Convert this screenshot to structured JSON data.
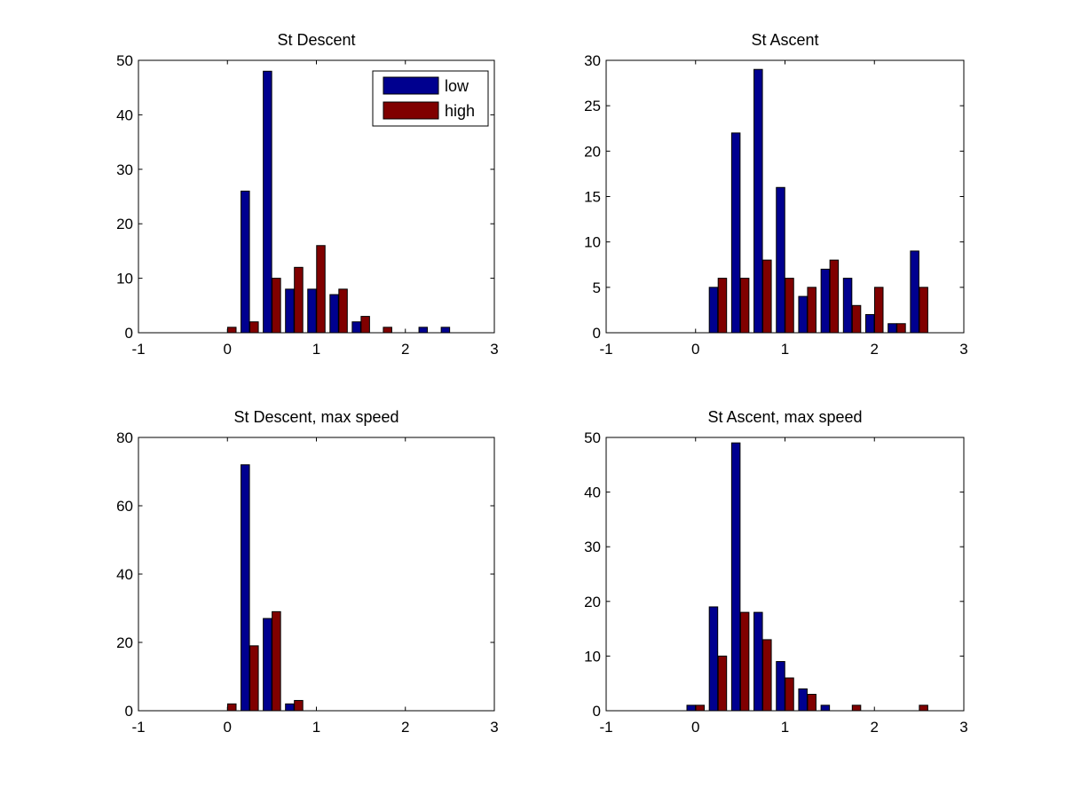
{
  "figure": {
    "background": "#ffffff",
    "series_colors": {
      "low": "#00008f",
      "high": "#800000"
    }
  },
  "chart_data": [
    {
      "type": "bar",
      "title": "St Descent",
      "xlabel": "",
      "ylabel": "",
      "xlim": [
        -1,
        3
      ],
      "ylim": [
        0,
        50
      ],
      "xticks": [
        -1,
        0,
        1,
        2,
        3
      ],
      "yticks": [
        0,
        10,
        20,
        30,
        40,
        50
      ],
      "xtick_labels": [
        "-1",
        "0",
        "1",
        "2",
        "3"
      ],
      "ytick_labels": [
        "0",
        "10",
        "20",
        "30",
        "40",
        "50"
      ],
      "bin_centers": [
        0,
        0.25,
        0.5,
        0.75,
        1,
        1.25,
        1.5,
        1.75,
        2,
        2.25,
        2.5
      ],
      "series": [
        {
          "name": "low",
          "values": [
            0,
            26,
            48,
            8,
            8,
            7,
            2,
            0,
            0,
            1,
            1
          ]
        },
        {
          "name": "high",
          "values": [
            1,
            2,
            10,
            12,
            16,
            8,
            3,
            1,
            0,
            0,
            0
          ]
        }
      ],
      "legend": {
        "placement": "top-right",
        "entries": [
          "low",
          "high"
        ]
      }
    },
    {
      "type": "bar",
      "title": "St Ascent",
      "xlabel": "",
      "ylabel": "",
      "xlim": [
        -1,
        3
      ],
      "ylim": [
        0,
        30
      ],
      "xticks": [
        -1,
        0,
        1,
        2,
        3
      ],
      "yticks": [
        0,
        5,
        10,
        15,
        20,
        25,
        30
      ],
      "xtick_labels": [
        "-1",
        "0",
        "1",
        "2",
        "3"
      ],
      "ytick_labels": [
        "0",
        "5",
        "10",
        "15",
        "20",
        "25",
        "30"
      ],
      "bin_centers": [
        0.25,
        0.5,
        0.75,
        1,
        1.25,
        1.5,
        1.75,
        2,
        2.25,
        2.5
      ],
      "series": [
        {
          "name": "low",
          "values": [
            5,
            22,
            29,
            16,
            4,
            7,
            6,
            2,
            1,
            9
          ]
        },
        {
          "name": "high",
          "values": [
            6,
            6,
            8,
            6,
            5,
            8,
            3,
            5,
            1,
            5
          ]
        }
      ]
    },
    {
      "type": "bar",
      "title": "St Descent, max speed",
      "xlabel": "",
      "ylabel": "",
      "xlim": [
        -1,
        3
      ],
      "ylim": [
        0,
        80
      ],
      "xticks": [
        -1,
        0,
        1,
        2,
        3
      ],
      "yticks": [
        0,
        20,
        40,
        60,
        80
      ],
      "xtick_labels": [
        "-1",
        "0",
        "1",
        "2",
        "3"
      ],
      "ytick_labels": [
        "0",
        "20",
        "40",
        "60",
        "80"
      ],
      "bin_centers": [
        0,
        0.25,
        0.5,
        0.75
      ],
      "series": [
        {
          "name": "low",
          "values": [
            0,
            72,
            27,
            2
          ]
        },
        {
          "name": "high",
          "values": [
            2,
            19,
            29,
            3
          ]
        }
      ]
    },
    {
      "type": "bar",
      "title": "St Ascent, max speed",
      "xlabel": "",
      "ylabel": "",
      "xlim": [
        -1,
        3
      ],
      "ylim": [
        0,
        50
      ],
      "xticks": [
        -1,
        0,
        1,
        2,
        3
      ],
      "yticks": [
        0,
        10,
        20,
        30,
        40,
        50
      ],
      "xtick_labels": [
        "-1",
        "0",
        "1",
        "2",
        "3"
      ],
      "ytick_labels": [
        "0",
        "10",
        "20",
        "30",
        "40",
        "50"
      ],
      "bin_centers": [
        0,
        0.25,
        0.5,
        0.75,
        1,
        1.25,
        1.5,
        1.75,
        2,
        2.25,
        2.5
      ],
      "series": [
        {
          "name": "low",
          "values": [
            1,
            19,
            49,
            18,
            9,
            4,
            1,
            0,
            0,
            0,
            0
          ]
        },
        {
          "name": "high",
          "values": [
            1,
            10,
            18,
            13,
            6,
            3,
            0,
            1,
            0,
            0,
            1
          ]
        }
      ]
    }
  ]
}
